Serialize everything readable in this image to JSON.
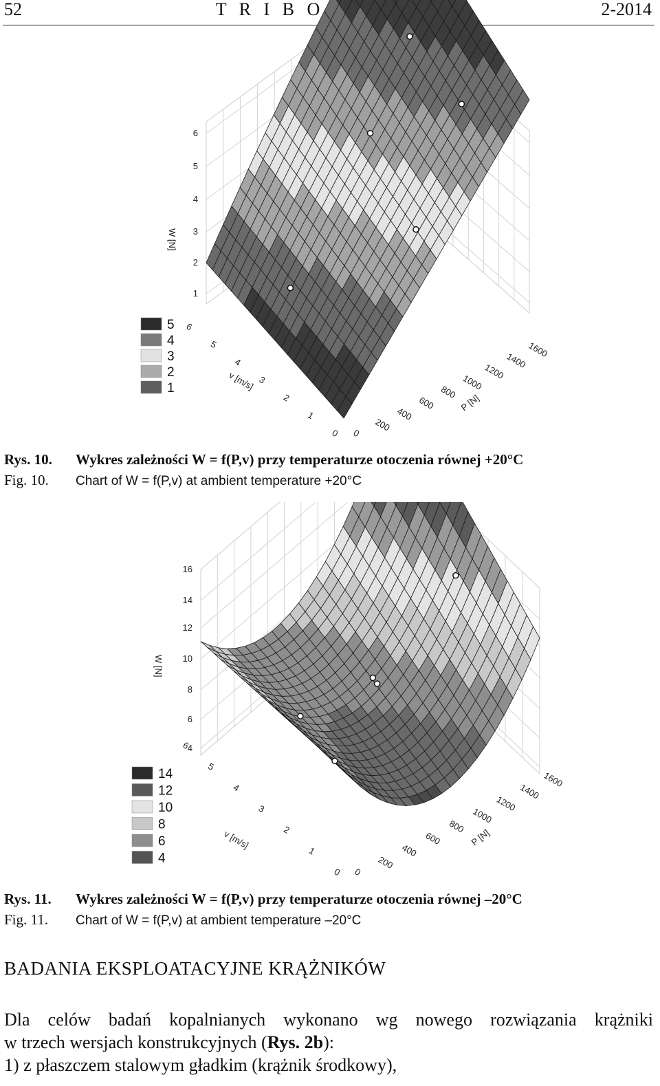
{
  "header": {
    "page_number": "52",
    "journal": "T R I B O L O G I A",
    "issue": "2-2014"
  },
  "figures": [
    {
      "label_pl": "Rys. 10.",
      "caption_pl": "Wykres zależności W = f(P,v) przy temperaturze otoczenia równej +20°C",
      "label_en": "Fig. 10.",
      "caption_en": "Chart of W = f(P,v) at ambient temperature +20°C"
    },
    {
      "label_pl": "Rys. 11.",
      "caption_pl": "Wykres zależności W = f(P,v) przy temperaturze otoczenia równej –20°C",
      "label_en": "Fig. 11.",
      "caption_en": "Chart of W = f(P,v) at ambient temperature –20°C"
    }
  ],
  "chart_data": [
    {
      "type": "surface3d",
      "zlabel": "W [N]",
      "xlabel": "v [m/s]",
      "ylabel": "P [N]",
      "z_ticks": [
        "1",
        "2",
        "3",
        "4",
        "5",
        "6"
      ],
      "v_ticks": [
        "0",
        "1",
        "2",
        "3",
        "4",
        "5",
        "6"
      ],
      "p_ticks": [
        "0",
        "200",
        "400",
        "600",
        "800",
        "1000",
        "1200",
        "1400",
        "1600"
      ],
      "legend": [
        "5",
        "4",
        "3",
        "2",
        "1"
      ],
      "legend_colors": [
        "#2b2b2b",
        "#7a7a7a",
        "#e2e2e2",
        "#aaaaaa",
        "#5e5e5e"
      ],
      "ylim": [
        0,
        6.5
      ]
    },
    {
      "type": "surface3d",
      "zlabel": "W [N]",
      "xlabel": "v [m/s]",
      "ylabel": "P [N]",
      "z_ticks": [
        "4",
        "6",
        "8",
        "10",
        "12",
        "14",
        "16"
      ],
      "v_ticks": [
        "0",
        "1",
        "2",
        "3",
        "4",
        "5",
        "6"
      ],
      "p_ticks": [
        "0",
        "200",
        "400",
        "600",
        "800",
        "1000",
        "1200",
        "1400",
        "1600"
      ],
      "legend": [
        "14",
        "12",
        "10",
        "8",
        "6",
        "4"
      ],
      "legend_colors": [
        "#2b2b2b",
        "#5a5a5a",
        "#e4e4e4",
        "#c8c8c8",
        "#8e8e8e",
        "#555555"
      ],
      "ylim": [
        3,
        17
      ]
    }
  ],
  "section": {
    "title": "BADANIA EKSPLOATACYJNE KRĄŻNIKÓW"
  },
  "body": {
    "line1": "Dla celów badań kopalnianych wykonano wg nowego rozwiązania krążniki",
    "line2_before": "w trzech wersjach konstrukcyjnych (",
    "line2_ref": "Rys. 2b",
    "line2_after": "):",
    "line3": "1) z płaszczem stalowym gładkim (krążnik środkowy),"
  }
}
